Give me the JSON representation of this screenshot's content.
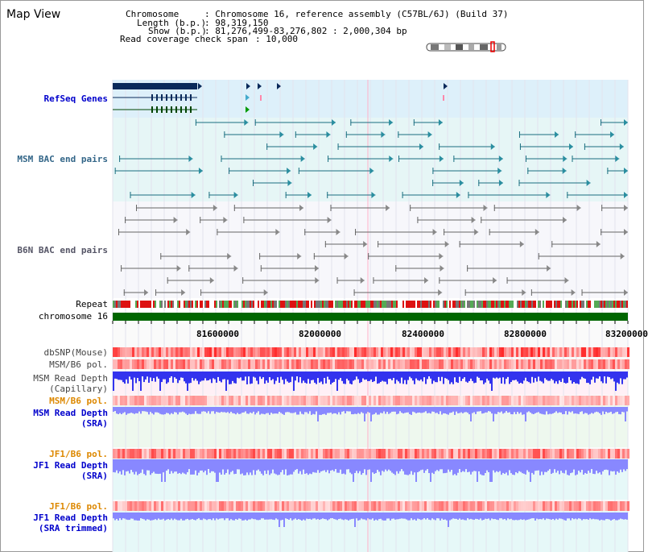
{
  "title": "Map View",
  "info": {
    "chromosome_key": "Chromosome",
    "chromosome_val": ": Chromosome 16, reference assembly (C57BL/6J) (Build 37)",
    "length_key": "Length (b.p.)",
    "length_val": ": 98,319,150",
    "show_key": "Show (b.p.)",
    "show_val": ": 81,276,499-83,276,802 : 2,000,304 bp",
    "coverage_key": "Read coverage check span",
    "coverage_val": ": 10,000"
  },
  "labels": {
    "refseq": "RefSeq Genes",
    "msm_bac": "MSM BAC end pairs",
    "b6n_bac": "B6N BAC end pairs",
    "repeat": "Repeat",
    "chrom": "chromosome 16",
    "dbsnp": "dbSNP(Mouse)",
    "msm_pol1": "MSM/B6 pol.",
    "msm_depth_cap1": "MSM Read Depth",
    "msm_depth_cap2": "(Capillary)",
    "msm_pol2": "MSM/B6 pol.",
    "msm_depth_sra1": "MSM Read Depth",
    "msm_depth_sra2": "(SRA)",
    "jf1_pol1": "JF1/B6 pol.",
    "jf1_depth1": "JF1 Read Depth",
    "jf1_depth2": "(SRA)",
    "jf1_pol2": "JF1/B6 pol.",
    "jf1_trim1": "JF1 Read Depth",
    "jf1_trim2": "(SRA trimmed)"
  },
  "axis": {
    "ticks": [
      "81600000",
      "82000000",
      "82400000",
      "82800000",
      "83200000"
    ]
  },
  "colors": {
    "refseq_label": "#0000cc",
    "bac_label": "#336688",
    "b6n_label": "#555566",
    "pol_label": "#dd8800",
    "depth_label": "#0000cc",
    "refseq_bg": "#ddf0fa",
    "msm_bac_bg": "#e6f6f6",
    "chromosome_bar": "#006600",
    "depth_bar": "#3333ee",
    "depth_light": "#8888ff"
  }
}
